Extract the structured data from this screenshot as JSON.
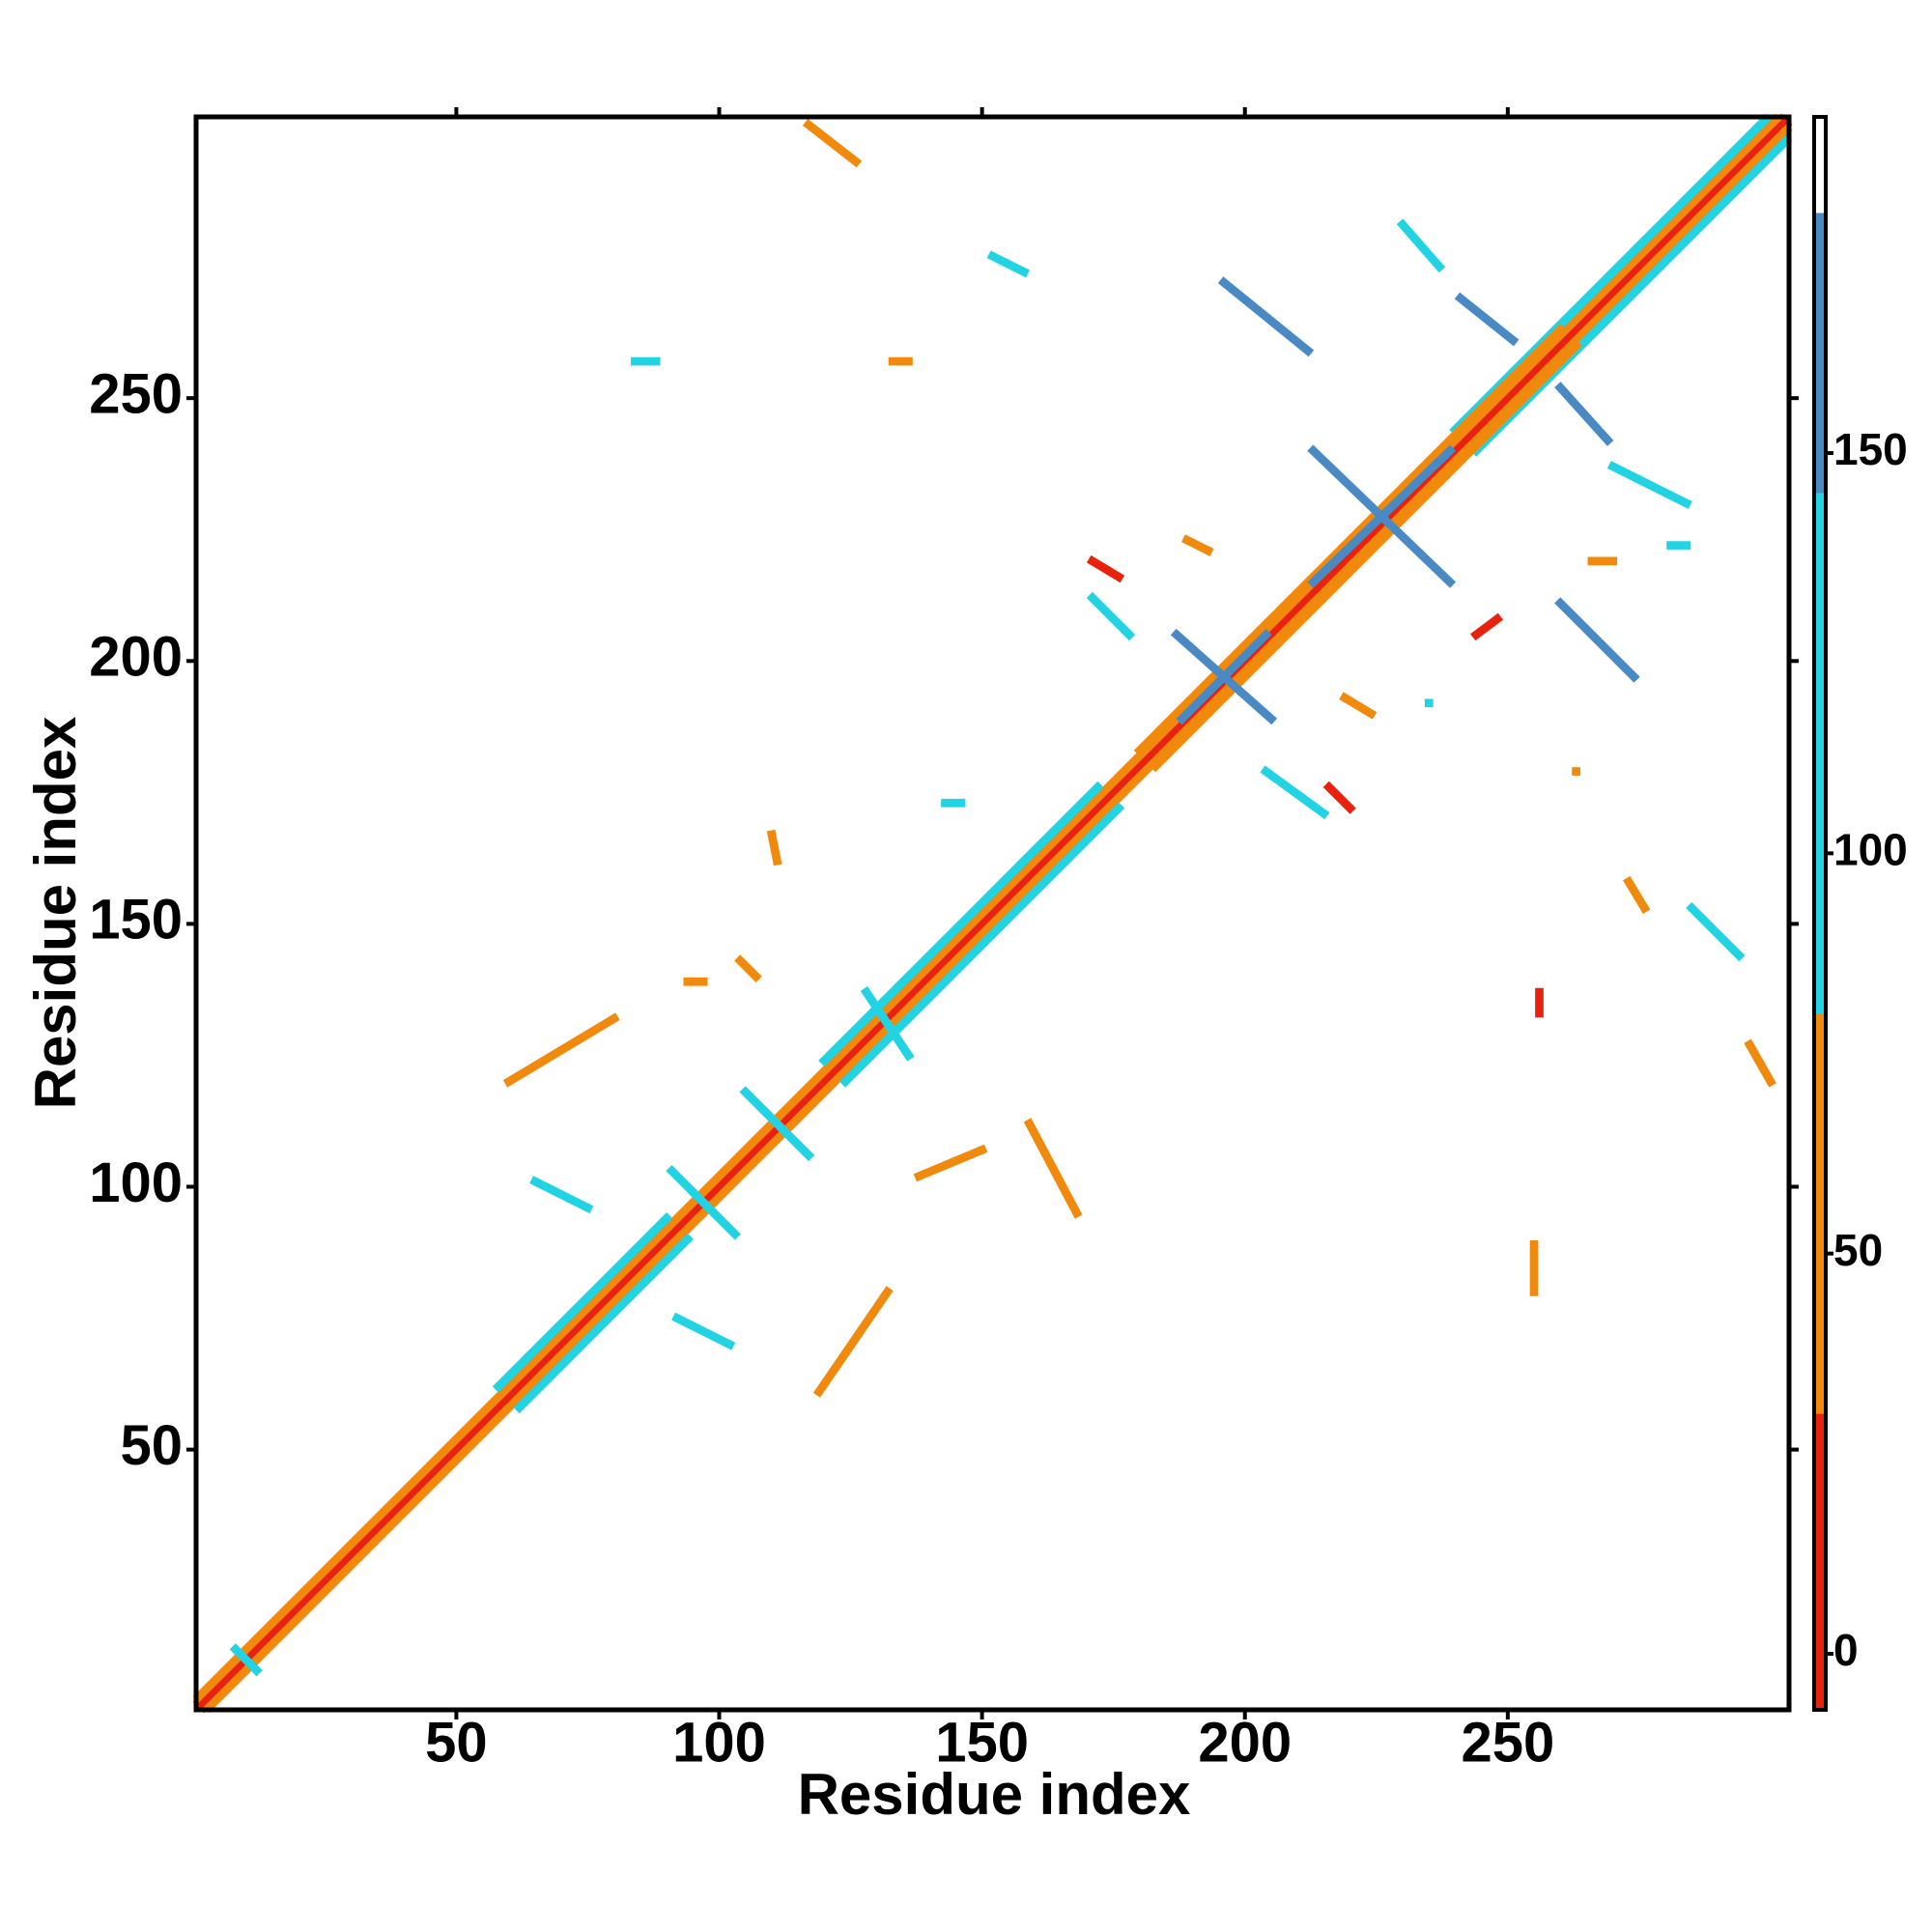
{
  "chart_data": {
    "type": "heatmap",
    "x_label": "Residue index",
    "y_label": "Residue index",
    "xlim": [
      0.5,
      303.5
    ],
    "ylim": [
      0.5,
      303.5
    ],
    "xticks": [
      50,
      100,
      150,
      200,
      250
    ],
    "yticks": [
      50,
      100,
      150,
      200,
      250
    ],
    "zlim": [
      -7,
      192
    ],
    "zticks": [
      0,
      50,
      100,
      150
    ],
    "color_bands": [
      {
        "from": -7,
        "to": 30,
        "color": "#e8220c"
      },
      {
        "from": 30,
        "to": 80,
        "color": "#f0890c"
      },
      {
        "from": 80,
        "to": 145,
        "color": "#22d3e3"
      },
      {
        "from": 145,
        "to": 180,
        "color": "#4a8ac4"
      },
      {
        "from": 180,
        "to": 192,
        "color": "#ffffff"
      }
    ],
    "segments": {
      "x1": [
        1,
        2,
        1,
        3,
        58,
        62,
        120,
        124,
        240,
        244,
        8,
        180,
        183,
        95,
        99,
        105,
        117,
        128,
        136,
        117,
        60,
        119,
        196,
        241,
        230,
        213,
        213,
        187,
        188,
        260,
        270,
        260,
        171,
        171,
        204,
        216,
        219,
        189,
        138,
        159,
        255,
        256,
        296,
        273,
        285,
        84,
        133,
        152,
        104,
        94,
        110,
        92,
        65,
        143,
        235,
        244,
        281,
        266,
        263
      ],
      "y1": [
        2,
        1,
        3,
        1,
        62,
        58,
        124,
        120,
        244,
        240,
        12,
        183,
        180,
        99,
        95,
        118,
        106,
        137,
        125,
        302,
        120,
        61,
        272,
        269,
        283,
        240,
        215,
        205,
        189,
        252,
        237,
        211,
        212,
        219,
        179,
        176,
        193,
        223,
        102,
        112,
        89,
        137,
        127,
        158,
        153,
        257,
        257,
        277,
        143,
        139,
        167,
        75,
        101,
        173,
        192,
        205,
        222,
        219,
        179
      ],
      "x2": [
        302,
        303,
        301,
        303,
        90,
        94,
        172,
        176,
        299,
        303,
        12,
        260,
        263,
        103,
        91,
        117,
        105,
        136,
        128,
        126,
        80,
        132,
        212,
        251,
        237,
        239,
        239,
        205,
        204,
        269,
        284,
        274,
        178,
        176,
        215,
        220,
        224,
        193,
        150,
        168,
        255,
        256,
        300,
        276,
        294,
        88,
        136,
        158,
        107,
        97,
        111,
        102,
        75,
        146,
        235,
        248,
        284,
        270,
        263
      ],
      "y2": [
        303,
        302,
        303,
        301,
        94,
        90,
        176,
        172,
        303,
        299,
        8,
        263,
        260,
        91,
        103,
        106,
        118,
        125,
        137,
        295,
        132,
        80,
        259,
        261,
        275,
        215,
        240,
        189,
        205,
        242,
        230,
        197,
        205,
        216,
        171,
        172,
        190,
        221,
        107,
        95,
        80,
        133,
        120,
        153,
        144,
        257,
        257,
        274,
        140,
        139,
        162,
        70,
        96,
        173,
        192,
        208,
        222,
        219,
        179
      ],
      "values": [
        10,
        10,
        55,
        55,
        100,
        100,
        100,
        100,
        100,
        100,
        110,
        60,
        60,
        110,
        110,
        130,
        130,
        110,
        110,
        60,
        40,
        40,
        160,
        160,
        120,
        160,
        160,
        160,
        160,
        160,
        120,
        160,
        140,
        10,
        130,
        10,
        60,
        60,
        50,
        60,
        60,
        10,
        60,
        60,
        110,
        110,
        55,
        120,
        60,
        60,
        60,
        100,
        100,
        110,
        110,
        10,
        110,
        60,
        60
      ]
    }
  }
}
